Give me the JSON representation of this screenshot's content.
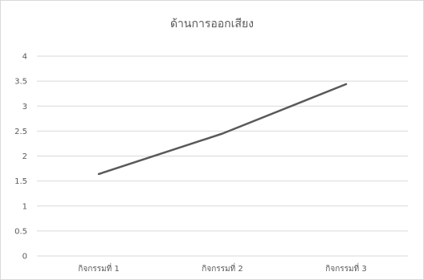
{
  "chart_data": {
    "type": "line",
    "title": "ด้านการออกเสียง",
    "categories": [
      "กิจกรรมที่ 1",
      "กิจกรรมที่ 2",
      "กิจกรรมที่ 3"
    ],
    "series": [
      {
        "values": [
          1.64,
          2.45,
          3.44
        ],
        "color": "#595959"
      }
    ],
    "ylim": [
      0,
      4
    ],
    "y_ticks": [
      "0",
      "0.5",
      "1",
      "1.5",
      "2",
      "2.5",
      "3",
      "3.5",
      "4"
    ],
    "y_tick_values": [
      0,
      0.5,
      1,
      1.5,
      2,
      2.5,
      3,
      3.5,
      4
    ],
    "grid": true,
    "legend": "none",
    "gridline_color": "#d9d9d9"
  }
}
